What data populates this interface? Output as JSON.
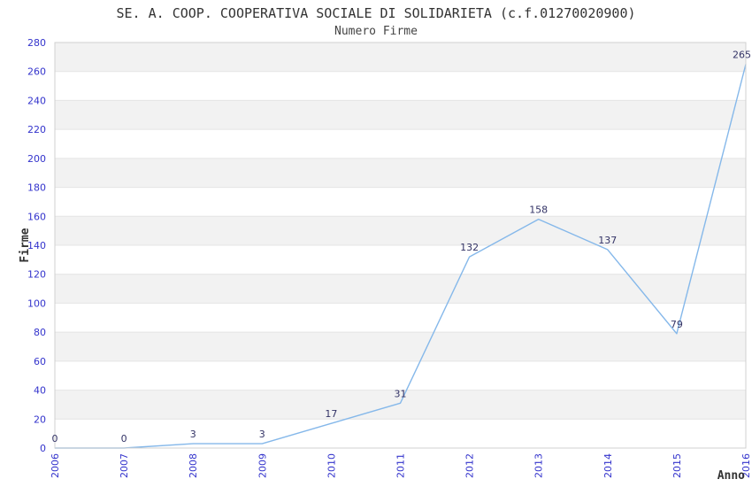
{
  "chart_data": {
    "type": "line",
    "title": "SE. A. COOP. COOPERATIVA SOCIALE DI SOLIDARIETA (c.f.01270020900)",
    "subtitle": "Numero Firme",
    "xlabel": "Anno",
    "ylabel": "Firme",
    "categories": [
      "2006",
      "2007",
      "2008",
      "2009",
      "2010",
      "2011",
      "2012",
      "2013",
      "2014",
      "2015",
      "2016"
    ],
    "values": [
      0,
      0,
      3,
      3,
      17,
      31,
      132,
      158,
      137,
      79,
      265
    ],
    "data_labels": [
      "0",
      "0",
      "3",
      "3",
      "17",
      "31",
      "132",
      "158",
      "137",
      "79",
      "265"
    ],
    "ylim": [
      0,
      280
    ],
    "ytick_step": 20,
    "grid": "horizontal-bands",
    "legend": "none",
    "colors": {
      "line": "#85b8ea",
      "tick_label": "#3333cc",
      "data_label": "#333366",
      "band_fill": "#f2f2f2",
      "gridline": "#e4e4e4",
      "border": "#d0d0d0",
      "title_text": "#333333"
    }
  }
}
